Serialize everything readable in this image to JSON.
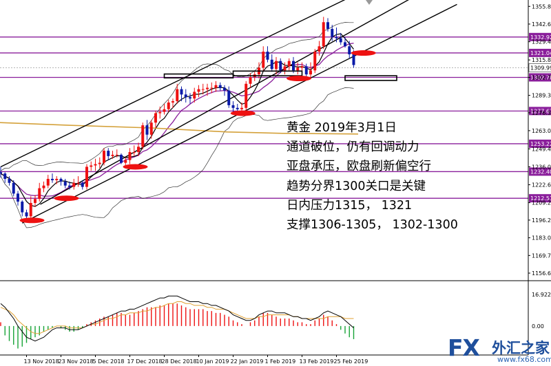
{
  "chart_data": [
    {
      "type": "candlestick",
      "x_dates": [
        "2018-11-05",
        "2018-11-06",
        "2018-11-07",
        "2018-11-08",
        "2018-11-09",
        "2018-11-12",
        "2018-11-13",
        "2018-11-14",
        "2018-11-15",
        "2018-11-16",
        "2018-11-19",
        "2018-11-20",
        "2018-11-21",
        "2018-11-22",
        "2018-11-23",
        "2018-11-26",
        "2018-11-27",
        "2018-11-28",
        "2018-11-29",
        "2018-11-30",
        "2018-12-03",
        "2018-12-04",
        "2018-12-05",
        "2018-12-06",
        "2018-12-07",
        "2018-12-10",
        "2018-12-11",
        "2018-12-12",
        "2018-12-13",
        "2018-12-14",
        "2018-12-17",
        "2018-12-18",
        "2018-12-19",
        "2018-12-20",
        "2018-12-21",
        "2018-12-24",
        "2018-12-26",
        "2018-12-27",
        "2018-12-28",
        "2018-12-31",
        "2019-01-02",
        "2019-01-03",
        "2019-01-04",
        "2019-01-07",
        "2019-01-08",
        "2019-01-09",
        "2019-01-10",
        "2019-01-11",
        "2019-01-14",
        "2019-01-15",
        "2019-01-16",
        "2019-01-17",
        "2019-01-18",
        "2019-01-21",
        "2019-01-22",
        "2019-01-23",
        "2019-01-24",
        "2019-01-25",
        "2019-01-28",
        "2019-01-29",
        "2019-01-30",
        "2019-01-31",
        "2019-02-01",
        "2019-02-04",
        "2019-02-05",
        "2019-02-06",
        "2019-02-07",
        "2019-02-08",
        "2019-02-11",
        "2019-02-12",
        "2019-02-13",
        "2019-02-14",
        "2019-02-15",
        "2019-02-18",
        "2019-02-19",
        "2019-02-20",
        "2019-02-21",
        "2019-02-22",
        "2019-02-25",
        "2019-02-26",
        "2019-02-27",
        "2019-02-28",
        "2019-03-01"
      ],
      "open": [
        1232,
        1231,
        1227,
        1224,
        1216,
        1210,
        1202,
        1199,
        1209,
        1212,
        1220,
        1222,
        1227,
        1226,
        1227,
        1225,
        1222,
        1221,
        1224,
        1224,
        1221,
        1236,
        1237,
        1238,
        1239,
        1248,
        1244,
        1245,
        1245,
        1239,
        1241,
        1247,
        1247,
        1251,
        1267,
        1260,
        1269,
        1276,
        1277,
        1279,
        1284,
        1285,
        1294,
        1290,
        1288,
        1287,
        1292,
        1294,
        1294,
        1295,
        1295,
        1297,
        1295,
        1293,
        1282,
        1280,
        1279,
        1280,
        1298,
        1303,
        1305,
        1310,
        1322,
        1316,
        1309,
        1315,
        1308,
        1311,
        1315,
        1308,
        1310,
        1311,
        1305,
        1308,
        1322,
        1326,
        1344,
        1339,
        1333,
        1332,
        1329,
        1326,
        1320
      ],
      "high": [
        1236,
        1232,
        1229,
        1226,
        1218,
        1211,
        1204,
        1214,
        1215,
        1224,
        1225,
        1230,
        1231,
        1229,
        1228,
        1227,
        1225,
        1227,
        1229,
        1226,
        1238,
        1240,
        1242,
        1243,
        1250,
        1250,
        1248,
        1249,
        1246,
        1243,
        1250,
        1252,
        1254,
        1269,
        1271,
        1271,
        1278,
        1281,
        1283,
        1286,
        1287,
        1298,
        1296,
        1294,
        1291,
        1295,
        1297,
        1298,
        1298,
        1299,
        1300,
        1299,
        1297,
        1296,
        1285,
        1283,
        1284,
        1300,
        1306,
        1308,
        1314,
        1326,
        1326,
        1320,
        1318,
        1317,
        1314,
        1317,
        1318,
        1314,
        1314,
        1313,
        1314,
        1324,
        1330,
        1348,
        1347,
        1342,
        1340,
        1336,
        1333,
        1330,
        1323
      ],
      "low": [
        1228,
        1224,
        1222,
        1214,
        1207,
        1199,
        1196,
        1196,
        1206,
        1210,
        1217,
        1220,
        1224,
        1223,
        1222,
        1220,
        1219,
        1219,
        1221,
        1219,
        1219,
        1233,
        1233,
        1235,
        1237,
        1241,
        1242,
        1243,
        1238,
        1236,
        1238,
        1244,
        1244,
        1249,
        1256,
        1257,
        1265,
        1272,
        1275,
        1277,
        1280,
        1283,
        1285,
        1284,
        1283,
        1284,
        1288,
        1290,
        1289,
        1291,
        1292,
        1293,
        1289,
        1280,
        1277,
        1276,
        1276,
        1277,
        1295,
        1300,
        1302,
        1308,
        1314,
        1307,
        1305,
        1306,
        1305,
        1308,
        1306,
        1305,
        1307,
        1303,
        1302,
        1306,
        1319,
        1324,
        1337,
        1330,
        1329,
        1327,
        1325,
        1317,
        1310
      ],
      "close": [
        1231,
        1227,
        1224,
        1216,
        1210,
        1202,
        1199,
        1209,
        1212,
        1220,
        1222,
        1227,
        1226,
        1227,
        1225,
        1222,
        1221,
        1224,
        1224,
        1221,
        1236,
        1237,
        1238,
        1239,
        1248,
        1244,
        1245,
        1245,
        1239,
        1241,
        1247,
        1247,
        1251,
        1267,
        1260,
        1269,
        1276,
        1277,
        1279,
        1284,
        1285,
        1294,
        1290,
        1288,
        1287,
        1292,
        1294,
        1294,
        1295,
        1295,
        1297,
        1295,
        1293,
        1282,
        1280,
        1279,
        1280,
        1298,
        1303,
        1305,
        1310,
        1322,
        1316,
        1309,
        1315,
        1308,
        1311,
        1315,
        1308,
        1310,
        1311,
        1305,
        1308,
        1322,
        1326,
        1344,
        1339,
        1333,
        1332,
        1329,
        1326,
        1320,
        1312
      ],
      "x_tick_labels": [
        "13 Nov 2018",
        "23 Nov 2018",
        "5 Dec 2018",
        "17 Dec 2018",
        "28 Dec 2018",
        "10 Jan 2019",
        "22 Jan 2019",
        "1 Feb 2019",
        "13 Feb 2019",
        "25 Feb 2019"
      ],
      "y_tick_labels": [
        "1355.80",
        "1342.60",
        "1329.40",
        "1315.80",
        "1302.78",
        "1289.35",
        "1276.35",
        "1263.00",
        "1249.40",
        "1236.00",
        "1222.60",
        "1209.20",
        "1196.20",
        "1183.00",
        "1169.78",
        "1156.60"
      ],
      "ylim": [
        1153,
        1358
      ],
      "tagged_levels": [
        {
          "label": "1332.92",
          "value": 1332.92
        },
        {
          "label": "1321.04",
          "value": 1321.04
        },
        {
          "label": "1302.78",
          "value": 1302.78
        },
        {
          "label": "1277.67",
          "value": 1277.67
        },
        {
          "label": "1253.22",
          "value": 1253.22
        },
        {
          "label": "1232.40",
          "value": 1232.4
        },
        {
          "label": "1212.51",
          "value": 1212.51
        }
      ],
      "current_price_label": "1309.99",
      "current_price": 1309.99,
      "colors": {
        "bull": "#ee1111",
        "bear": "#0a1aa8",
        "level": "#8a1e9b",
        "ma_fast": "#000000",
        "ma_mid": "#8a1e9b",
        "ma_slow": "#d4a13a",
        "band": "#333333",
        "channel": "#000000",
        "highlight": "#ee1111"
      },
      "channel": {
        "lower_start": [
          "2018-11-12",
          1194.0
        ],
        "lower_end": [
          "2019-03-01",
          1318.5
        ],
        "upper_start": [
          "2018-11-05",
          1236.0
        ],
        "upper_end": [
          "2019-03-01",
          1364.0
        ],
        "upper2_end": [
          "2019-03-01",
          1356.0
        ]
      },
      "boxes": [
        {
          "from": "2018-12-28",
          "to": "2019-01-22",
          "top": 1305.3,
          "bottom": 1302.4
        },
        {
          "from": "2019-01-22",
          "to": "2019-02-13",
          "top": 1307.5,
          "bottom": 1304.0
        },
        {
          "from": "2019-02-27",
          "to": "2019-03-15",
          "top": 1304.0,
          "bottom": 1300.5
        }
      ]
    },
    {
      "type": "histogram",
      "y_tick_labels": [
        "16.922",
        "0.00"
      ],
      "ylim": [
        -14,
        22
      ],
      "values": [
        2,
        -5,
        -8,
        -10,
        -12,
        -11,
        -9,
        -7,
        -6,
        -5,
        -3,
        -2,
        -1,
        0,
        -1,
        -2,
        -3,
        -3,
        -2,
        -1,
        1,
        2,
        3,
        4,
        5,
        5,
        6,
        7,
        7,
        6,
        6,
        7,
        8,
        9,
        10,
        10,
        10,
        11,
        11,
        12,
        12,
        12,
        11,
        10,
        9,
        9,
        9,
        9,
        8,
        8,
        7,
        7,
        6,
        5,
        3,
        2,
        1,
        0,
        2,
        3,
        5,
        7,
        7,
        6,
        5,
        4,
        4,
        4,
        3,
        2,
        2,
        1,
        1,
        3,
        4,
        6,
        5,
        3,
        1,
        -2,
        -4,
        -6,
        -7
      ],
      "signal": [
        10,
        9,
        8,
        6,
        3,
        1,
        -1,
        -3,
        -4,
        -4,
        -3,
        -2,
        -1,
        0,
        0,
        0,
        -1,
        -1,
        -1,
        -1,
        0,
        1,
        1,
        2,
        3,
        4,
        4,
        5,
        6,
        6,
        7,
        7,
        7,
        8,
        8,
        9,
        10,
        10,
        11,
        12,
        12,
        13,
        13,
        12,
        12,
        11,
        11,
        11,
        10,
        10,
        9,
        9,
        9,
        8,
        7,
        6,
        5,
        4,
        4,
        4,
        5,
        5,
        6,
        6,
        6,
        6,
        6,
        6,
        5,
        5,
        4,
        4,
        4,
        4,
        4,
        4,
        5,
        5,
        5,
        5,
        4,
        4,
        4
      ],
      "line": [
        12,
        10,
        7,
        4,
        0,
        -3,
        -6,
        -7,
        -8,
        -7,
        -6,
        -4,
        -2,
        -1,
        -1,
        -1,
        -2,
        -2,
        -2,
        -1,
        0,
        1,
        2,
        3,
        4,
        5,
        6,
        7,
        8,
        8,
        9,
        9,
        10,
        11,
        12,
        13,
        14,
        15,
        15,
        16,
        16,
        16,
        15,
        14,
        13,
        13,
        13,
        12,
        12,
        11,
        11,
        10,
        9,
        8,
        6,
        5,
        4,
        3,
        3,
        4,
        6,
        7,
        8,
        8,
        7,
        7,
        7,
        6,
        5,
        5,
        4,
        4,
        3,
        4,
        5,
        7,
        8,
        7,
        6,
        5,
        3,
        1,
        -1
      ]
    }
  ],
  "annotation": {
    "lines": [
      "黄金 2019年3月1日",
      "通道破位，仍有回调动力",
      "亚盘承压，欧盘刷新偏空行",
      "趋势分界1300关口是关键",
      "日内压力1315， 1321",
      "支撑1306-1305， 1302-1300"
    ]
  },
  "logo": {
    "fx": "FX",
    "cn": "外汇之家",
    "url": "www.fx68.com"
  }
}
